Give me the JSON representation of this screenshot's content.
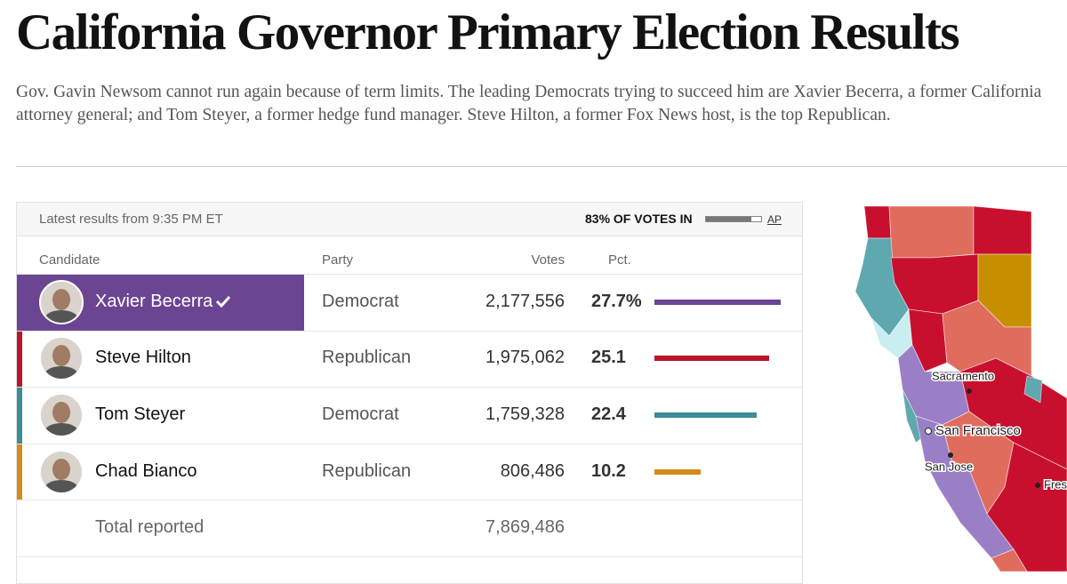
{
  "header": {
    "title": "California Governor Primary Election Results",
    "description": "Gov. Gavin Newsom cannot run again because of term limits. The leading Democrats trying to succeed him are Xavier Becerra, a former California attorney general; and Tom Steyer, a former hedge fund manager. Steve Hilton, a former Fox News host, is the top Republican."
  },
  "results": {
    "updated": "Latest results from 9:35 PM ET",
    "reporting": {
      "label": "83% OF VOTES IN",
      "pct": 83,
      "source": "AP"
    },
    "columns": [
      "Candidate",
      "Party",
      "Votes",
      "Pct."
    ],
    "rows": [
      {
        "name": "Xavier Becerra",
        "party": "Democrat",
        "votes": "2,177,556",
        "pct": 27.7,
        "pct_label": "27.7%",
        "color": "#6b4592",
        "winner": true
      },
      {
        "name": "Steve Hilton",
        "party": "Republican",
        "votes": "1,975,062",
        "pct": 25.1,
        "color": "#b8162b"
      },
      {
        "name": "Tom Steyer",
        "party": "Democrat",
        "votes": "1,759,328",
        "pct": 22.4,
        "color": "#3b8c93"
      },
      {
        "name": "Chad Bianco",
        "party": "Republican",
        "votes": "806,486",
        "pct": 10.2,
        "color": "#d48b1c"
      }
    ],
    "total": {
      "label": "Total reported",
      "votes": "7,869,486"
    }
  },
  "map": {
    "cities": [
      "Sacramento",
      "San Francisco",
      "San Jose",
      "Fresno"
    ]
  }
}
